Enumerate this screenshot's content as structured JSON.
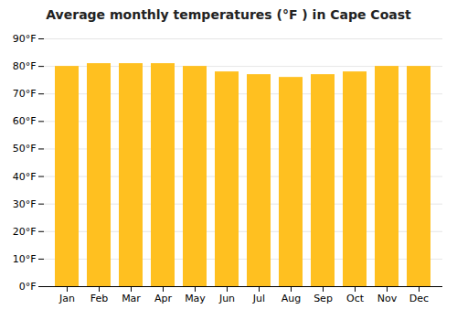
{
  "chart_data": {
    "type": "bar",
    "title": "Average monthly temperatures (°F ) in Cape Coast",
    "categories": [
      "Jan",
      "Feb",
      "Mar",
      "Apr",
      "May",
      "Jun",
      "Jul",
      "Aug",
      "Sep",
      "Oct",
      "Nov",
      "Dec"
    ],
    "values": [
      80,
      81,
      81,
      81,
      80,
      78,
      77,
      76,
      77,
      78,
      80,
      80
    ],
    "color": "#FFC020",
    "ylim": [
      0,
      90
    ],
    "yticks": [
      {
        "value": 0,
        "label": "0°F"
      },
      {
        "value": 10,
        "label": "10°F"
      },
      {
        "value": 20,
        "label": "20°F"
      },
      {
        "value": 30,
        "label": "30°F"
      },
      {
        "value": 40,
        "label": "40°F"
      },
      {
        "value": 50,
        "label": "50°F"
      },
      {
        "value": 60,
        "label": "60°F"
      },
      {
        "value": 70,
        "label": "70°F"
      },
      {
        "value": 80,
        "label": "80°F"
      },
      {
        "value": 90,
        "label": "90°F"
      }
    ],
    "grid": true
  }
}
